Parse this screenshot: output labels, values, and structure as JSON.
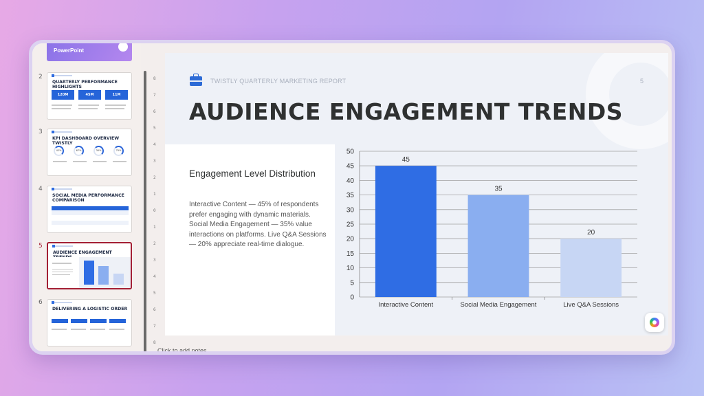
{
  "thumbnails": [
    {
      "num": "",
      "title": "PowerPoint"
    },
    {
      "num": "2",
      "title": "QUARTERLY PERFORMANCE HIGHLIGHTS",
      "boxes": [
        "120M",
        "45M",
        "11M"
      ]
    },
    {
      "num": "3",
      "title": "KPI DASHBOARD OVERVIEW TWISTLY",
      "rings": [
        "42%",
        "67%",
        "30%",
        "75%"
      ]
    },
    {
      "num": "4",
      "title": "SOCIAL MEDIA PERFORMANCE COMPARISON"
    },
    {
      "num": "5",
      "title": "AUDIENCE ENGAGEMENT TRENDS"
    },
    {
      "num": "6",
      "title": "DELIVERING A LOGISTIC ORDER"
    }
  ],
  "ruler_marks": [
    "8",
    "7",
    "6",
    "5",
    "4",
    "3",
    "2",
    "1",
    "0",
    "1",
    "2",
    "3",
    "4",
    "5",
    "6",
    "7",
    "8"
  ],
  "slide": {
    "report_label": "TWISTLY QUARTERLY MARKETING REPORT",
    "page_number": "5",
    "headline": "AUDIENCE ENGAGEMENT TRENDS",
    "panel_title": "Engagement Level Distribution",
    "panel_body": "Interactive Content — 45% of respondents prefer engaging with dynamic materials. Social Media Engagement — 35% value interactions on platforms. Live Q&A Sessions — 20% appreciate real-time dialogue."
  },
  "notes_placeholder": "Click to add notes",
  "colors": {
    "accent": "#2564d9",
    "active_border": "#a31f34"
  },
  "chart_data": {
    "type": "bar",
    "categories": [
      "Interactive Content",
      "Social Media Engagement",
      "Live Q&A Sessions"
    ],
    "values": [
      45,
      35,
      20
    ],
    "bar_colors": [
      "#2f6de4",
      "#8aaef0",
      "#c7d6f4"
    ],
    "ylim": [
      0,
      50
    ],
    "yticks": [
      0,
      5,
      10,
      15,
      20,
      25,
      30,
      35,
      40,
      45,
      50
    ],
    "grid": true,
    "title": "",
    "xlabel": "",
    "ylabel": ""
  }
}
